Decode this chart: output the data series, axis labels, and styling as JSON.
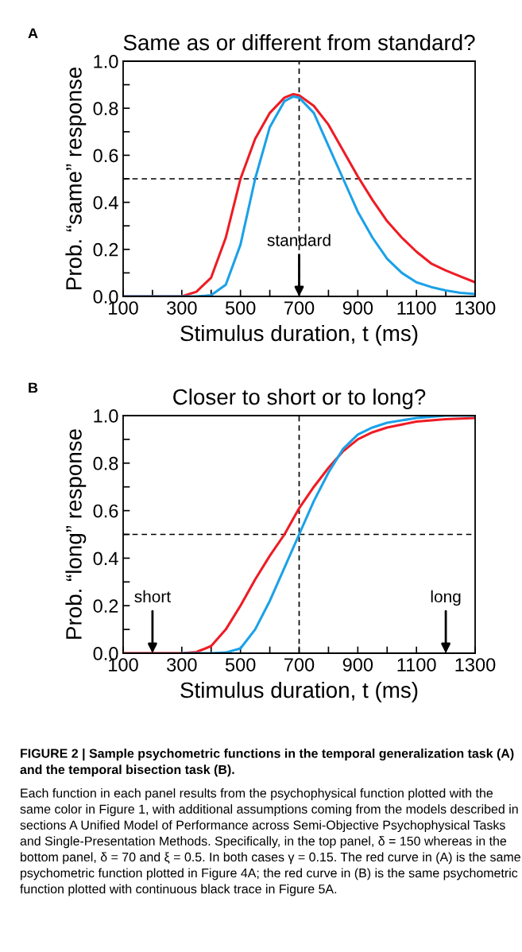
{
  "chart_data": [
    {
      "type": "line",
      "title": "Same as or different from standard?",
      "xlabel": "Stimulus duration, t (ms)",
      "ylabel": "Prob. “same” response",
      "xlim": [
        100,
        1300
      ],
      "ylim": [
        0,
        1.0
      ],
      "xticks": [
        100,
        {
          "value": 200,
          "label": null
        },
        300,
        {
          "value": 400,
          "label": null
        },
        500,
        {
          "value": 600,
          "label": null
        },
        700,
        {
          "value": 800,
          "label": null
        },
        900,
        {
          "value": 1000,
          "label": null
        },
        1100,
        {
          "value": 1200,
          "label": null
        },
        1300
      ],
      "yticks": [
        {
          "value": 0,
          "label": "0.0"
        },
        {
          "value": 0.1,
          "label": null
        },
        0.2,
        {
          "value": 0.3,
          "label": null
        },
        0.4,
        {
          "value": 0.5,
          "label": null
        },
        0.6,
        {
          "value": 0.7,
          "label": null
        },
        0.8,
        {
          "value": 0.9,
          "label": null
        },
        {
          "value": 1.0,
          "label": "1.0"
        }
      ],
      "grid": false,
      "legend": false,
      "x": [
        100,
        200,
        300,
        350,
        400,
        450,
        500,
        550,
        600,
        650,
        680,
        700,
        750,
        800,
        850,
        900,
        950,
        1000,
        1050,
        1100,
        1150,
        1200,
        1250,
        1300
      ],
      "series": [
        {
          "color": "#ee1c24",
          "values": [
            0,
            0,
            0,
            0.02,
            0.08,
            0.25,
            0.5,
            0.67,
            0.78,
            0.845,
            0.86,
            0.855,
            0.81,
            0.73,
            0.62,
            0.51,
            0.41,
            0.32,
            0.25,
            0.19,
            0.14,
            0.11,
            0.085,
            0.06
          ]
        },
        {
          "color": "#1ba1e8",
          "values": [
            0,
            0,
            0,
            0,
            0.005,
            0.05,
            0.22,
            0.5,
            0.72,
            0.83,
            0.85,
            0.845,
            0.78,
            0.64,
            0.5,
            0.36,
            0.25,
            0.16,
            0.1,
            0.06,
            0.04,
            0.025,
            0.015,
            0.01
          ]
        }
      ],
      "ref_lines": [
        {
          "axis": "x",
          "value": 700,
          "color": "#000000",
          "line_style": "dashed"
        },
        {
          "axis": "y",
          "value": 0.5,
          "color": "#000000",
          "line_style": "dashed"
        }
      ],
      "annotations": [
        "A",
        {
          "text": "standard",
          "x": 700,
          "y": 0
        }
      ]
    },
    {
      "type": "line",
      "title": "Closer to short or to long?",
      "xlabel": "Stimulus duration, t (ms)",
      "ylabel": "Prob. “long” response",
      "xlim": [
        100,
        1300
      ],
      "ylim": [
        0,
        1.0
      ],
      "xticks": [
        100,
        {
          "value": 200,
          "label": null
        },
        300,
        {
          "value": 400,
          "label": null
        },
        500,
        {
          "value": 600,
          "label": null
        },
        700,
        {
          "value": 800,
          "label": null
        },
        900,
        {
          "value": 1000,
          "label": null
        },
        1100,
        {
          "value": 1200,
          "label": null
        },
        1300
      ],
      "yticks": [
        {
          "value": 0,
          "label": "0.0"
        },
        {
          "value": 0.1,
          "label": null
        },
        0.2,
        {
          "value": 0.3,
          "label": null
        },
        0.4,
        {
          "value": 0.5,
          "label": null
        },
        0.6,
        {
          "value": 0.7,
          "label": null
        },
        0.8,
        {
          "value": 0.9,
          "label": null
        },
        {
          "value": 1.0,
          "label": "1.0"
        }
      ],
      "grid": false,
      "legend": false,
      "x": [
        100,
        200,
        300,
        350,
        400,
        450,
        500,
        550,
        600,
        650,
        700,
        750,
        800,
        850,
        900,
        950,
        1000,
        1100,
        1200,
        1300
      ],
      "series": [
        {
          "color": "#ee1c24",
          "values": [
            0,
            0,
            0,
            0.005,
            0.03,
            0.1,
            0.2,
            0.31,
            0.41,
            0.5,
            0.61,
            0.7,
            0.78,
            0.85,
            0.9,
            0.93,
            0.95,
            0.975,
            0.985,
            0.99
          ]
        },
        {
          "color": "#1ba1e8",
          "values": [
            null,
            null,
            0,
            0,
            0,
            0.003,
            0.02,
            0.1,
            0.22,
            0.36,
            0.5,
            0.64,
            0.76,
            0.86,
            0.92,
            0.95,
            0.97,
            0.99,
            1.0,
            1.0
          ]
        }
      ],
      "ref_lines": [
        {
          "axis": "x",
          "value": 700,
          "color": "#000000",
          "line_style": "dashed"
        },
        {
          "axis": "y",
          "value": 0.5,
          "color": "#000000",
          "line_style": "dashed"
        }
      ],
      "annotations": [
        "B",
        {
          "text": "short",
          "x": 200,
          "y": 0
        },
        {
          "text": "long",
          "x": 1200
        },
        "FIGURE 2 | Sample psychometric functions in the temporal generalization task (A) and the temporal bisection task (B).",
        "Each function in each panel results from the psychophysical function plotted with the same color in Figure 1, with additional assumptions coming from the models described in sections A Unified Model of Performance across Semi-Objective Psychophysical Tasks and Single-Presentation Methods. Specifically, in the top panel, δ = 150 whereas in the bottom panel, δ = 70 and ξ = 0.5. In both cases γ = 0.15. The red curve in (A) is the same psychometric function plotted in Figure 4A; the red curve in (B) is the same psychometric function plotted with continuous black trace in Figure 5A."
      ]
    }
  ]
}
